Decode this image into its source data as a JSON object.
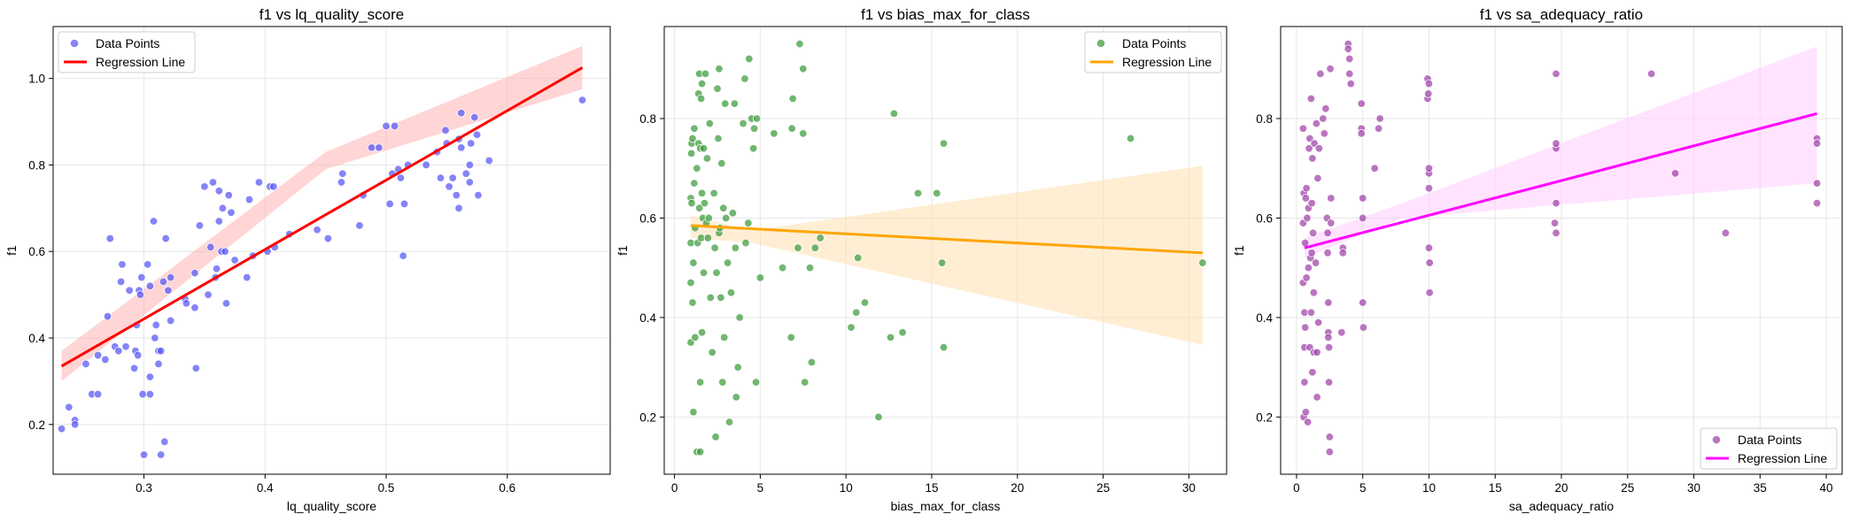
{
  "chart_data": [
    {
      "type": "scatter",
      "title": "f1 vs lq_quality_score",
      "xlabel": "lq_quality_score",
      "ylabel": "f1",
      "xlim": [
        0.225,
        0.685
      ],
      "ylim": [
        0.085,
        1.12
      ],
      "xticks": [
        "0.3",
        "0.4",
        "0.5",
        "0.6"
      ],
      "yticks": [
        "0.2",
        "0.4",
        "0.6",
        "0.8",
        "1.0"
      ],
      "legend": {
        "position": "top-left",
        "entries": [
          "Data Points",
          "Regression Line"
        ]
      },
      "point_color": "#5555f5",
      "line_color": "#ff0000",
      "band_color": "#ffb3b3",
      "regression": {
        "x": [
          0.232,
          0.662
        ],
        "y": [
          0.335,
          1.025
        ]
      },
      "band": {
        "lower": [
          0.3,
          0.79,
          0.975
        ],
        "upper": [
          0.37,
          0.83,
          1.075
        ],
        "x": [
          0.232,
          0.45,
          0.662
        ]
      },
      "points": [
        [
          0.232,
          0.19
        ],
        [
          0.238,
          0.24
        ],
        [
          0.243,
          0.21
        ],
        [
          0.243,
          0.2
        ],
        [
          0.252,
          0.34
        ],
        [
          0.257,
          0.27
        ],
        [
          0.262,
          0.27
        ],
        [
          0.262,
          0.36
        ],
        [
          0.268,
          0.35
        ],
        [
          0.27,
          0.45
        ],
        [
          0.272,
          0.63
        ],
        [
          0.276,
          0.38
        ],
        [
          0.279,
          0.37
        ],
        [
          0.281,
          0.53
        ],
        [
          0.282,
          0.57
        ],
        [
          0.285,
          0.38
        ],
        [
          0.288,
          0.51
        ],
        [
          0.292,
          0.33
        ],
        [
          0.293,
          0.37
        ],
        [
          0.294,
          0.43
        ],
        [
          0.295,
          0.36
        ],
        [
          0.296,
          0.51
        ],
        [
          0.297,
          0.5
        ],
        [
          0.298,
          0.54
        ],
        [
          0.299,
          0.27
        ],
        [
          0.3,
          0.13
        ],
        [
          0.303,
          0.57
        ],
        [
          0.305,
          0.31
        ],
        [
          0.305,
          0.52
        ],
        [
          0.305,
          0.27
        ],
        [
          0.308,
          0.67
        ],
        [
          0.309,
          0.4
        ],
        [
          0.31,
          0.43
        ],
        [
          0.312,
          0.34
        ],
        [
          0.312,
          0.37
        ],
        [
          0.314,
          0.13
        ],
        [
          0.314,
          0.37
        ],
        [
          0.316,
          0.53
        ],
        [
          0.317,
          0.16
        ],
        [
          0.318,
          0.63
        ],
        [
          0.32,
          0.51
        ],
        [
          0.322,
          0.44
        ],
        [
          0.322,
          0.54
        ],
        [
          0.334,
          0.49
        ],
        [
          0.335,
          0.48
        ],
        [
          0.342,
          0.55
        ],
        [
          0.342,
          0.47
        ],
        [
          0.343,
          0.33
        ],
        [
          0.346,
          0.66
        ],
        [
          0.35,
          0.75
        ],
        [
          0.353,
          0.5
        ],
        [
          0.355,
          0.61
        ],
        [
          0.357,
          0.76
        ],
        [
          0.359,
          0.54
        ],
        [
          0.36,
          0.56
        ],
        [
          0.362,
          0.67
        ],
        [
          0.362,
          0.74
        ],
        [
          0.364,
          0.6
        ],
        [
          0.365,
          0.7
        ],
        [
          0.367,
          0.6
        ],
        [
          0.368,
          0.48
        ],
        [
          0.37,
          0.73
        ],
        [
          0.372,
          0.69
        ],
        [
          0.375,
          0.58
        ],
        [
          0.385,
          0.54
        ],
        [
          0.387,
          0.72
        ],
        [
          0.39,
          0.59
        ],
        [
          0.395,
          0.76
        ],
        [
          0.402,
          0.6
        ],
        [
          0.404,
          0.75
        ],
        [
          0.407,
          0.75
        ],
        [
          0.408,
          0.61
        ],
        [
          0.42,
          0.64
        ],
        [
          0.443,
          0.65
        ],
        [
          0.452,
          0.63
        ],
        [
          0.463,
          0.76
        ],
        [
          0.464,
          0.78
        ],
        [
          0.478,
          0.66
        ],
        [
          0.481,
          0.73
        ],
        [
          0.488,
          0.84
        ],
        [
          0.494,
          0.84
        ],
        [
          0.5,
          0.89
        ],
        [
          0.503,
          0.71
        ],
        [
          0.505,
          0.78
        ],
        [
          0.507,
          0.89
        ],
        [
          0.51,
          0.79
        ],
        [
          0.512,
          0.77
        ],
        [
          0.514,
          0.59
        ],
        [
          0.515,
          0.71
        ],
        [
          0.518,
          0.8
        ],
        [
          0.533,
          0.8
        ],
        [
          0.542,
          0.83
        ],
        [
          0.545,
          0.77
        ],
        [
          0.549,
          0.88
        ],
        [
          0.55,
          0.85
        ],
        [
          0.552,
          0.75
        ],
        [
          0.555,
          0.77
        ],
        [
          0.558,
          0.73
        ],
        [
          0.56,
          0.86
        ],
        [
          0.56,
          0.7
        ],
        [
          0.562,
          0.84
        ],
        [
          0.562,
          0.92
        ],
        [
          0.566,
          0.78
        ],
        [
          0.569,
          0.76
        ],
        [
          0.569,
          0.8
        ],
        [
          0.57,
          0.85
        ],
        [
          0.573,
          0.91
        ],
        [
          0.575,
          0.87
        ],
        [
          0.576,
          0.73
        ],
        [
          0.585,
          0.81
        ],
        [
          0.662,
          0.95
        ]
      ]
    },
    {
      "type": "scatter",
      "title": "f1 vs bias_max_for_class",
      "xlabel": "bias_max_for_class",
      "ylabel": "f1",
      "xlim": [
        -0.6,
        32.2
      ],
      "ylim": [
        0.085,
        0.985
      ],
      "xticks": [
        "0",
        "5",
        "10",
        "15",
        "20",
        "25",
        "30"
      ],
      "yticks": [
        "0.2",
        "0.4",
        "0.6",
        "0.8"
      ],
      "legend": {
        "position": "top-right",
        "entries": [
          "Data Points",
          "Regression Line"
        ]
      },
      "point_color": "#3a9a3a",
      "line_color": "#ffa500",
      "band_color": "#ffe0b0",
      "regression": {
        "x": [
          0.95,
          30.8
        ],
        "y": [
          0.585,
          0.53
        ]
      },
      "band": {
        "lower": [
          0.56,
          0.55,
          0.345
        ],
        "upper": [
          0.605,
          0.575,
          0.705
        ],
        "x": [
          0.95,
          4.5,
          30.8
        ]
      },
      "points": [
        [
          0.95,
          0.55
        ],
        [
          0.95,
          0.64
        ],
        [
          0.95,
          0.47
        ],
        [
          0.95,
          0.35
        ],
        [
          0.98,
          0.73
        ],
        [
          1.0,
          0.63
        ],
        [
          1.0,
          0.75
        ],
        [
          1.05,
          0.76
        ],
        [
          1.05,
          0.43
        ],
        [
          1.1,
          0.51
        ],
        [
          1.1,
          0.21
        ],
        [
          1.15,
          0.78
        ],
        [
          1.15,
          0.67
        ],
        [
          1.2,
          0.36
        ],
        [
          1.2,
          0.58
        ],
        [
          1.3,
          0.13
        ],
        [
          1.3,
          0.7
        ],
        [
          1.35,
          0.55
        ],
        [
          1.4,
          0.85
        ],
        [
          1.4,
          0.75
        ],
        [
          1.45,
          0.89
        ],
        [
          1.45,
          0.62
        ],
        [
          1.5,
          0.27
        ],
        [
          1.5,
          0.74
        ],
        [
          1.5,
          0.13
        ],
        [
          1.55,
          0.84
        ],
        [
          1.55,
          0.56
        ],
        [
          1.6,
          0.65
        ],
        [
          1.6,
          0.87
        ],
        [
          1.6,
          0.37
        ],
        [
          1.65,
          0.6
        ],
        [
          1.7,
          0.74
        ],
        [
          1.7,
          0.49
        ],
        [
          1.75,
          0.63
        ],
        [
          1.8,
          0.89
        ],
        [
          1.85,
          0.59
        ],
        [
          1.9,
          0.72
        ],
        [
          1.95,
          0.56
        ],
        [
          2.0,
          0.6
        ],
        [
          2.05,
          0.79
        ],
        [
          2.1,
          0.44
        ],
        [
          2.2,
          0.33
        ],
        [
          2.3,
          0.65
        ],
        [
          2.35,
          0.54
        ],
        [
          2.4,
          0.16
        ],
        [
          2.45,
          0.49
        ],
        [
          2.5,
          0.86
        ],
        [
          2.55,
          0.76
        ],
        [
          2.6,
          0.9
        ],
        [
          2.6,
          0.57
        ],
        [
          2.65,
          0.58
        ],
        [
          2.7,
          0.44
        ],
        [
          2.75,
          0.71
        ],
        [
          2.8,
          0.27
        ],
        [
          2.85,
          0.62
        ],
        [
          2.9,
          0.36
        ],
        [
          2.95,
          0.83
        ],
        [
          3.0,
          0.6
        ],
        [
          3.1,
          0.51
        ],
        [
          3.2,
          0.19
        ],
        [
          3.3,
          0.45
        ],
        [
          3.4,
          0.61
        ],
        [
          3.5,
          0.83
        ],
        [
          3.55,
          0.54
        ],
        [
          3.6,
          0.24
        ],
        [
          3.7,
          0.3
        ],
        [
          3.8,
          0.4
        ],
        [
          4.0,
          0.79
        ],
        [
          4.1,
          0.88
        ],
        [
          4.15,
          0.55
        ],
        [
          4.3,
          0.59
        ],
        [
          4.35,
          0.92
        ],
        [
          4.5,
          0.8
        ],
        [
          4.6,
          0.74
        ],
        [
          4.65,
          0.78
        ],
        [
          4.75,
          0.27
        ],
        [
          4.8,
          0.8
        ],
        [
          5.0,
          0.48
        ],
        [
          5.8,
          0.77
        ],
        [
          6.3,
          0.5
        ],
        [
          6.8,
          0.36
        ],
        [
          6.85,
          0.78
        ],
        [
          6.9,
          0.84
        ],
        [
          7.2,
          0.54
        ],
        [
          7.3,
          0.95
        ],
        [
          7.5,
          0.9
        ],
        [
          7.5,
          0.77
        ],
        [
          7.6,
          0.27
        ],
        [
          7.9,
          0.5
        ],
        [
          8.0,
          0.31
        ],
        [
          8.2,
          0.54
        ],
        [
          8.5,
          0.56
        ],
        [
          10.3,
          0.38
        ],
        [
          10.6,
          0.41
        ],
        [
          10.7,
          0.52
        ],
        [
          11.1,
          0.43
        ],
        [
          11.9,
          0.2
        ],
        [
          12.6,
          0.36
        ],
        [
          12.8,
          0.81
        ],
        [
          13.3,
          0.37
        ],
        [
          14.2,
          0.65
        ],
        [
          15.3,
          0.65
        ],
        [
          15.6,
          0.51
        ],
        [
          15.7,
          0.75
        ],
        [
          15.7,
          0.34
        ],
        [
          26.6,
          0.76
        ],
        [
          30.8,
          0.51
        ]
      ]
    },
    {
      "type": "scatter",
      "title": "f1 vs sa_adequacy_ratio",
      "xlabel": "sa_adequacy_ratio",
      "ylabel": "f1",
      "xlim": [
        -1.2,
        41.2
      ],
      "ylim": [
        0.085,
        0.985
      ],
      "xticks": [
        "0",
        "5",
        "10",
        "15",
        "20",
        "25",
        "30",
        "35",
        "40"
      ],
      "yticks": [
        "0.2",
        "0.4",
        "0.6",
        "0.8"
      ],
      "legend": {
        "position": "bottom-right",
        "entries": [
          "Data Points",
          "Regression Line"
        ]
      },
      "point_color": "#a040a8",
      "line_color": "#ff00ff",
      "band_color": "#ffccff",
      "regression": {
        "x": [
          0.6,
          39.3
        ],
        "y": [
          0.54,
          0.81
        ]
      },
      "band": {
        "lower": [
          0.52,
          0.6,
          0.67
        ],
        "upper": [
          0.56,
          0.63,
          0.945
        ],
        "x": [
          0.6,
          8.0,
          39.3
        ]
      },
      "points": [
        [
          0.5,
          0.59
        ],
        [
          0.5,
          0.47
        ],
        [
          0.5,
          0.78
        ],
        [
          0.55,
          0.65
        ],
        [
          0.55,
          0.2
        ],
        [
          0.6,
          0.34
        ],
        [
          0.6,
          0.41
        ],
        [
          0.6,
          0.27
        ],
        [
          0.65,
          0.38
        ],
        [
          0.65,
          0.55
        ],
        [
          0.7,
          0.64
        ],
        [
          0.7,
          0.21
        ],
        [
          0.75,
          0.66
        ],
        [
          0.75,
          0.48
        ],
        [
          0.8,
          0.6
        ],
        [
          0.85,
          0.19
        ],
        [
          0.9,
          0.62
        ],
        [
          0.9,
          0.5
        ],
        [
          0.95,
          0.74
        ],
        [
          1.0,
          0.76
        ],
        [
          1.0,
          0.34
        ],
        [
          1.05,
          0.52
        ],
        [
          1.1,
          0.84
        ],
        [
          1.1,
          0.41
        ],
        [
          1.15,
          0.63
        ],
        [
          1.15,
          0.53
        ],
        [
          1.2,
          0.72
        ],
        [
          1.2,
          0.29
        ],
        [
          1.25,
          0.57
        ],
        [
          1.3,
          0.45
        ],
        [
          1.3,
          0.33
        ],
        [
          1.35,
          0.75
        ],
        [
          1.45,
          0.51
        ],
        [
          1.5,
          0.79
        ],
        [
          1.55,
          0.24
        ],
        [
          1.55,
          0.33
        ],
        [
          1.6,
          0.68
        ],
        [
          1.65,
          0.39
        ],
        [
          1.7,
          0.74
        ],
        [
          1.8,
          0.89
        ],
        [
          2.0,
          0.8
        ],
        [
          2.1,
          0.77
        ],
        [
          2.2,
          0.82
        ],
        [
          2.3,
          0.6
        ],
        [
          2.35,
          0.57
        ],
        [
          2.35,
          0.53
        ],
        [
          2.4,
          0.43
        ],
        [
          2.4,
          0.37
        ],
        [
          2.4,
          0.36
        ],
        [
          2.45,
          0.34
        ],
        [
          2.45,
          0.27
        ],
        [
          2.5,
          0.16
        ],
        [
          2.5,
          0.13
        ],
        [
          2.55,
          0.9
        ],
        [
          2.6,
          0.64
        ],
        [
          2.6,
          0.59
        ],
        [
          3.4,
          0.37
        ],
        [
          3.5,
          0.54
        ],
        [
          3.5,
          0.53
        ],
        [
          3.9,
          0.95
        ],
        [
          3.9,
          0.94
        ],
        [
          4.0,
          0.92
        ],
        [
          4.0,
          0.89
        ],
        [
          4.1,
          0.87
        ],
        [
          4.9,
          0.83
        ],
        [
          4.9,
          0.78
        ],
        [
          4.9,
          0.77
        ],
        [
          5.0,
          0.64
        ],
        [
          5.0,
          0.6
        ],
        [
          5.0,
          0.43
        ],
        [
          5.05,
          0.38
        ],
        [
          5.9,
          0.7
        ],
        [
          6.2,
          0.78
        ],
        [
          6.3,
          0.8
        ],
        [
          9.9,
          0.88
        ],
        [
          9.9,
          0.84
        ],
        [
          9.95,
          0.85
        ],
        [
          10.0,
          0.87
        ],
        [
          10.0,
          0.69
        ],
        [
          10.0,
          0.7
        ],
        [
          10.0,
          0.66
        ],
        [
          10.0,
          0.54
        ],
        [
          10.05,
          0.51
        ],
        [
          10.05,
          0.45
        ],
        [
          19.5,
          0.59
        ],
        [
          19.6,
          0.89
        ],
        [
          19.6,
          0.74
        ],
        [
          19.6,
          0.75
        ],
        [
          19.6,
          0.63
        ],
        [
          19.6,
          0.57
        ],
        [
          26.8,
          0.89
        ],
        [
          28.6,
          0.69
        ],
        [
          32.4,
          0.57
        ],
        [
          39.3,
          0.76
        ],
        [
          39.3,
          0.75
        ],
        [
          39.3,
          0.67
        ],
        [
          39.3,
          0.63
        ]
      ]
    }
  ]
}
